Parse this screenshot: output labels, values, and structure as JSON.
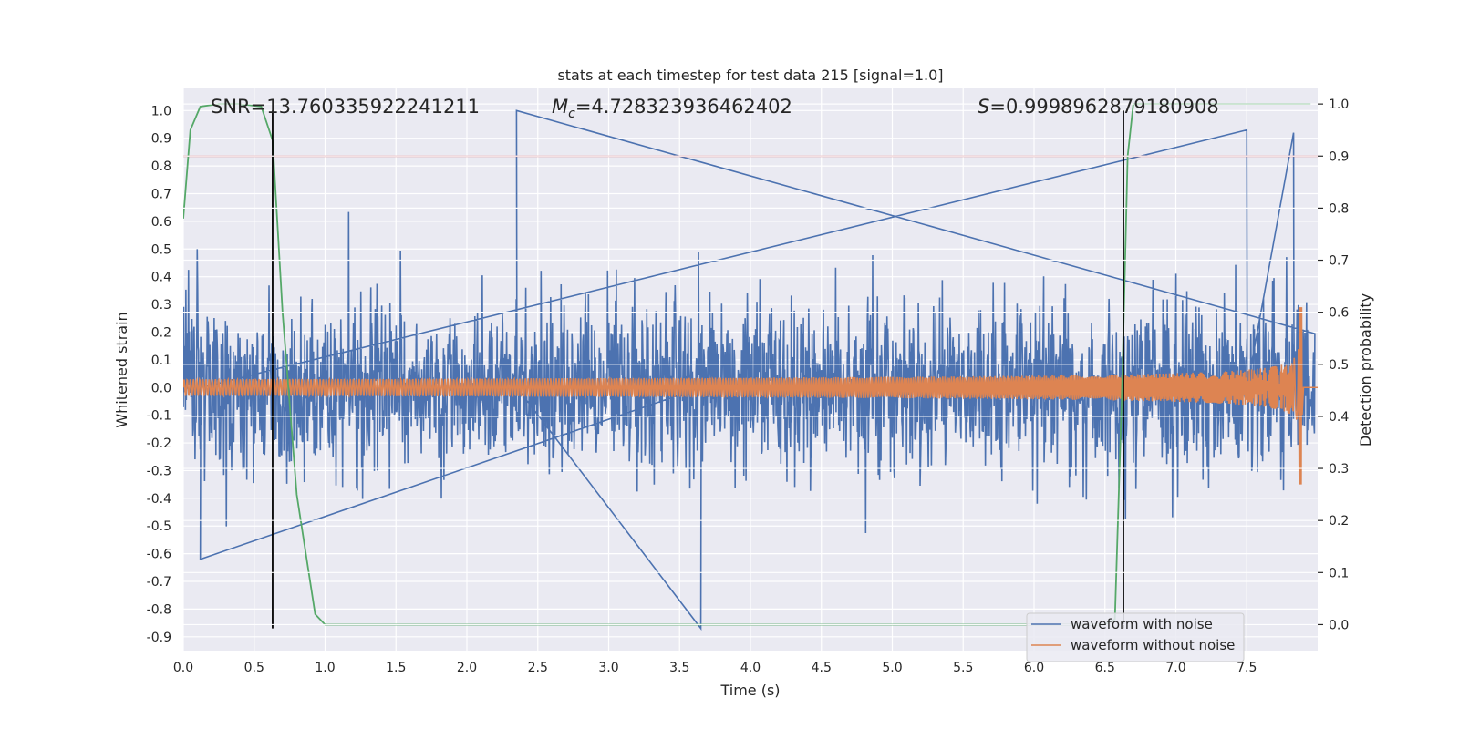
{
  "chart_data": {
    "type": "line",
    "title": "stats at each timestep for test data 215 [signal=1.0]",
    "xlabel": "Time (s)",
    "ylabel": "Whitened strain",
    "ylabel_right": "Detection probability",
    "xlim": [
      0.0,
      8.0
    ],
    "ylim": [
      -0.95,
      1.08
    ],
    "ylim_right": [
      -0.05,
      1.03
    ],
    "xticks": [
      "0.0",
      "0.5",
      "1.0",
      "1.5",
      "2.0",
      "2.5",
      "3.0",
      "3.5",
      "4.0",
      "4.5",
      "5.0",
      "5.5",
      "6.0",
      "6.5",
      "7.0",
      "7.5"
    ],
    "yticks": [
      "1.0",
      "0.9",
      "0.8",
      "0.7",
      "0.6",
      "0.5",
      "0.4",
      "0.3",
      "0.2",
      "0.1",
      "0.0",
      "-0.1",
      "-0.2",
      "-0.3",
      "-0.4",
      "-0.5",
      "-0.6",
      "-0.7",
      "-0.8",
      "-0.9"
    ],
    "yticks_right": [
      "1.0",
      "0.9",
      "0.8",
      "0.7",
      "0.6",
      "0.5",
      "0.4",
      "0.3",
      "0.2",
      "0.1",
      "0.0"
    ],
    "annotations": {
      "snr": "SNR=13.760335922241211",
      "mc_symbol": "M",
      "mc_sub": "c",
      "mc_value": "=4.728323936462402",
      "s_symbol": "S",
      "s_value": "=0.9998962879180908"
    },
    "series": [
      {
        "name": "waveform with noise",
        "color": "#4c72b0",
        "typical_amplitude": 0.35,
        "max": 1.0,
        "min": -0.87
      },
      {
        "name": "waveform without noise",
        "color": "#dd8452",
        "start_amplitude": 0.03,
        "peak_time": 7.88,
        "peak_max": 0.29,
        "peak_min": -0.35,
        "end_time": 7.9
      },
      {
        "name": "detection probability",
        "color": "#55a868",
        "axis": "right",
        "x": [
          0.0,
          0.05,
          0.12,
          0.25,
          0.4,
          0.55,
          0.63,
          0.7,
          0.8,
          0.93,
          1.0,
          1.5,
          6.0,
          6.5,
          6.57,
          6.62,
          6.66,
          6.7,
          7.0,
          7.5,
          7.95
        ],
        "y": [
          0.78,
          0.95,
          0.995,
          1.0,
          1.0,
          0.995,
          0.93,
          0.6,
          0.25,
          0.02,
          0.0,
          0.0,
          0.0,
          0.0,
          0.01,
          0.45,
          0.9,
          1.0,
          1.0,
          1.0,
          1.0
        ]
      }
    ],
    "hlines": [
      {
        "axis": "right",
        "y": 0.9,
        "color": "#c44e52"
      }
    ],
    "vlines": [
      {
        "x": 0.63,
        "ymin": -0.87,
        "ymax": 1.0,
        "color": "#000000"
      },
      {
        "x": 6.63,
        "ymin": -0.87,
        "ymax": 1.0,
        "color": "#000000"
      }
    ],
    "legend": {
      "position": "lower-right",
      "entries": [
        "waveform with noise",
        "waveform without noise"
      ]
    },
    "grid": true,
    "background": "#eaeaf2"
  }
}
